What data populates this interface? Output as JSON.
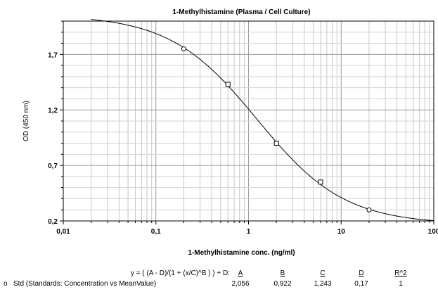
{
  "chart_data": {
    "type": "line",
    "title": "1-Methylhistamine (Plasma / Cell Culture)",
    "xlabel": "1-Methylhistamine conc. (ng/ml)",
    "ylabel": "OD (450 nm)",
    "x_scale": "log",
    "xlim": [
      0.01,
      100
    ],
    "ylim": [
      0.2,
      2.0
    ],
    "x_tick_labels": [
      "0,01",
      "0,1",
      "1",
      "10",
      "100"
    ],
    "y_tick_labels": [
      "0,2",
      "0,7",
      "1,2",
      "1,7"
    ],
    "grid": true,
    "series": [
      {
        "x": [
          0.2,
          0.6,
          2,
          6,
          20
        ],
        "y": [
          1.75,
          1.43,
          0.9,
          0.55,
          0.3
        ]
      }
    ],
    "fit": {
      "A": 2.056,
      "B": 0.922,
      "C": 1.243,
      "D": 0.17
    }
  },
  "fit_table": {
    "equation": "y = ( (A - D)/(1 + (x/C)^B ) ) + D:",
    "headers": [
      "A",
      "B",
      "C",
      "D",
      "R^2"
    ],
    "row_marker": "o",
    "row_label": "Std (Standards: Concentration vs MeanValue)",
    "values": [
      "2,056",
      "0,922",
      "1,243",
      "0,17",
      "1"
    ]
  }
}
